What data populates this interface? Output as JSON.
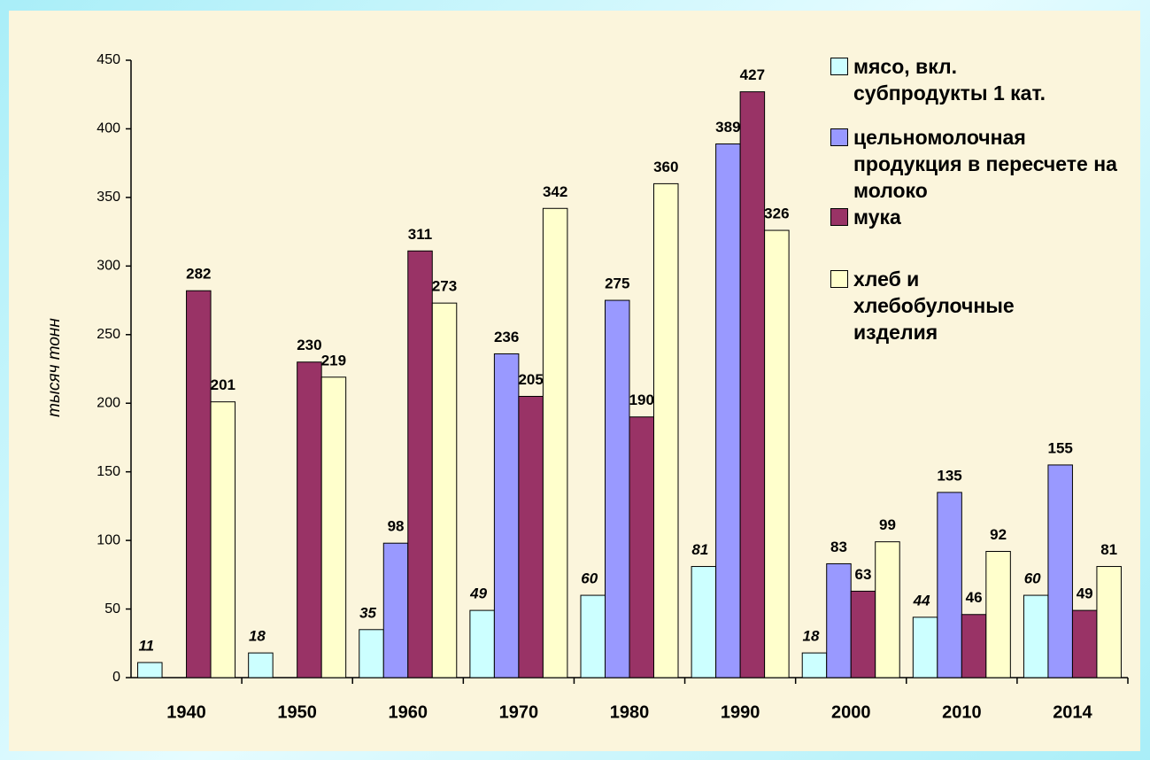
{
  "chart_data": {
    "type": "bar",
    "y_label": "тысяч тонн",
    "categories": [
      "1940",
      "1950",
      "1960",
      "1970",
      "1980",
      "1990",
      "2000",
      "2010",
      "2014"
    ],
    "series": [
      {
        "name": "мясо, вкл. субпродукты 1 кат.",
        "color": "#ccffff",
        "values": [
          11,
          18,
          35,
          49,
          60,
          81,
          18,
          44,
          60
        ]
      },
      {
        "name": "цельномолочная продукция в пересчете на молоко",
        "color": "#9999ff",
        "values": [
          null,
          null,
          98,
          236,
          275,
          389,
          83,
          135,
          155
        ]
      },
      {
        "name": "мука",
        "color": "#993366",
        "values": [
          282,
          230,
          311,
          205,
          190,
          427,
          63,
          46,
          49
        ]
      },
      {
        "name": "хлеб и хлебобулочные изделия",
        "color": "#ffffcc",
        "values": [
          201,
          219,
          273,
          342,
          360,
          326,
          99,
          92,
          81
        ]
      }
    ],
    "ylim": [
      0,
      450
    ],
    "yticks": [
      0,
      50,
      100,
      150,
      200,
      250,
      300,
      350,
      400,
      450
    ],
    "legend": "right"
  }
}
